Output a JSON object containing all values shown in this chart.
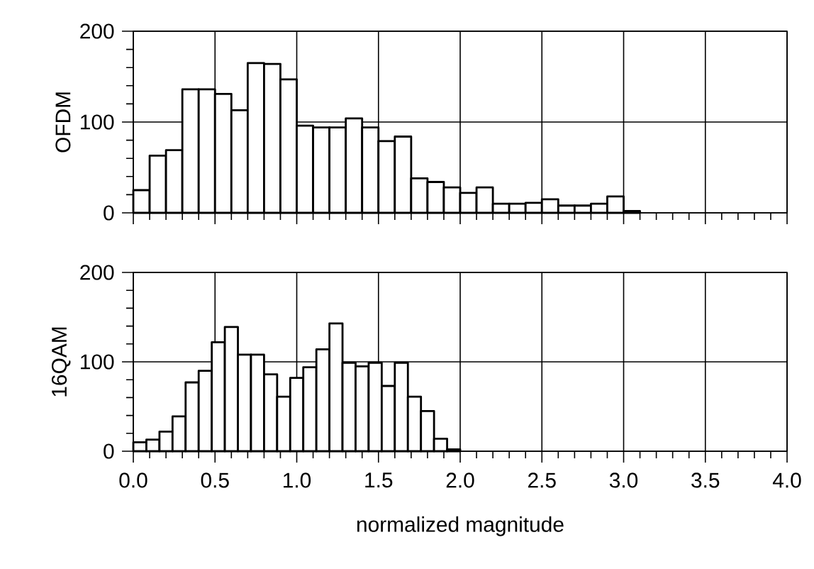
{
  "chart_data": [
    {
      "type": "histogram",
      "ylabel": "OFDM",
      "color": "#ffffff",
      "grid": true,
      "tick_labels": "y",
      "bins": [
        0,
        0.1,
        0.2,
        0.3,
        0.4,
        0.5,
        0.6,
        0.7,
        0.8,
        0.9,
        1.0,
        1.1,
        1.2,
        1.3,
        1.4,
        1.5,
        1.6,
        1.7,
        1.8,
        1.9,
        2.0,
        2.1,
        2.2,
        2.3,
        2.4,
        2.5,
        2.6,
        2.7,
        2.8,
        2.9,
        3.0,
        3.1
      ],
      "values": [
        25,
        63,
        69,
        136,
        136,
        131,
        113,
        165,
        164,
        147,
        96,
        94,
        94,
        104,
        94,
        79,
        84,
        38,
        34,
        28,
        22,
        28,
        10,
        10,
        11,
        15,
        8,
        8,
        10,
        18,
        2
      ],
      "xlim": [
        0,
        4
      ],
      "ylim": [
        0,
        200
      ],
      "yticks": [
        0,
        100,
        200
      ],
      "xticks": [
        {
          "value": 0,
          "label": null
        },
        {
          "value": 0.5,
          "label": null
        },
        {
          "value": 1,
          "label": null
        },
        {
          "value": 1.5,
          "label": null
        },
        {
          "value": 2,
          "label": null
        },
        {
          "value": 2.5,
          "label": null
        },
        {
          "value": 3,
          "label": null
        },
        {
          "value": 3.5,
          "label": null
        },
        {
          "value": 4,
          "label": null
        }
      ]
    },
    {
      "type": "histogram",
      "ylabel": "16QAM",
      "xlabel": "normalized magnitude",
      "color": "#ffffff",
      "grid": true,
      "bins": [
        0,
        0.08,
        0.16,
        0.24,
        0.32,
        0.4,
        0.48,
        0.56,
        0.64,
        0.72,
        0.8,
        0.88,
        0.96,
        1.04,
        1.12,
        1.2,
        1.28,
        1.36,
        1.44,
        1.52,
        1.6,
        1.68,
        1.76,
        1.84,
        1.92,
        2.0
      ],
      "values": [
        10,
        13,
        22,
        39,
        77,
        90,
        122,
        139,
        108,
        108,
        86,
        61,
        82,
        94,
        114,
        143,
        99,
        95,
        99,
        73,
        99,
        61,
        45,
        14,
        2
      ],
      "xlim": [
        0,
        4
      ],
      "ylim": [
        0,
        200
      ],
      "yticks": [
        0,
        100,
        200
      ],
      "xticks": [
        {
          "value": 0,
          "label": "0.0"
        },
        {
          "value": 0.5,
          "label": "0.5"
        },
        {
          "value": 1,
          "label": "1.0"
        },
        {
          "value": 1.5,
          "label": "1.5"
        },
        {
          "value": 2,
          "label": "2.0"
        },
        {
          "value": 2.5,
          "label": "2.5"
        },
        {
          "value": 3,
          "label": "3.0"
        },
        {
          "value": 3.5,
          "label": "3.5"
        },
        {
          "value": 4,
          "label": "4.0"
        }
      ]
    }
  ]
}
